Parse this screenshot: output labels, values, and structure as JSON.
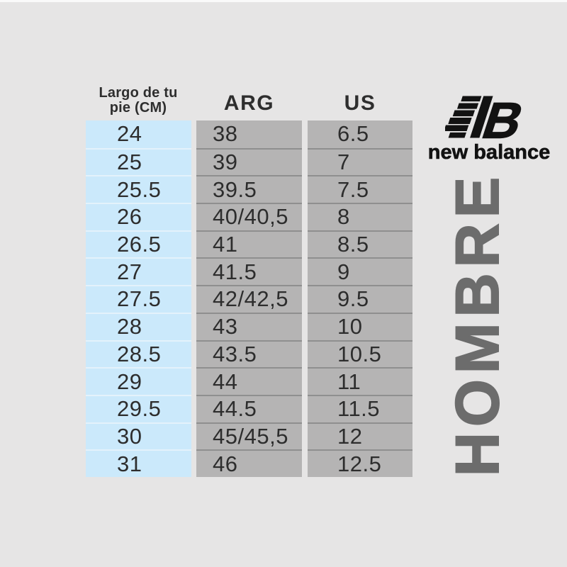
{
  "meta": {
    "background_color": "#e6e5e5"
  },
  "brand": {
    "logo_icon": "new-balance-nb-mark",
    "mark_color": "#121212",
    "wordmark": "new balance",
    "vertical_label": "HOMBRE",
    "vertical_label_color": "#6c6c6c"
  },
  "size_chart": {
    "header": {
      "cm_line1": "Largo de tu",
      "cm_line2": "pie (CM)",
      "arg": "ARG",
      "us": "US"
    },
    "colors": {
      "cm_cell": "#cbe9fb",
      "size_cell": "#b5b4b4",
      "text": "#2d2d2d"
    },
    "rows": [
      {
        "cm": "24",
        "arg": "38",
        "us": "6.5"
      },
      {
        "cm": "25",
        "arg": "39",
        "us": "7"
      },
      {
        "cm": "25.5",
        "arg": "39.5",
        "us": "7.5"
      },
      {
        "cm": "26",
        "arg": "40/40,5",
        "us": "8"
      },
      {
        "cm": "26.5",
        "arg": "41",
        "us": "8.5"
      },
      {
        "cm": "27",
        "arg": "41.5",
        "us": "9"
      },
      {
        "cm": "27.5",
        "arg": "42/42,5",
        "us": "9.5"
      },
      {
        "cm": "28",
        "arg": "43",
        "us": "10"
      },
      {
        "cm": "28.5",
        "arg": "43.5",
        "us": "10.5"
      },
      {
        "cm": "29",
        "arg": "44",
        "us": "11"
      },
      {
        "cm": "29.5",
        "arg": "44.5",
        "us": "11.5"
      },
      {
        "cm": "30",
        "arg": "45/45,5",
        "us": "12"
      },
      {
        "cm": "31",
        "arg": "46",
        "us": "12.5"
      }
    ]
  },
  "chart_data": {
    "type": "table",
    "columns": [
      "Largo de tu pie (CM)",
      "ARG",
      "US"
    ],
    "rows": [
      [
        "24",
        "38",
        "6.5"
      ],
      [
        "25",
        "39",
        "7"
      ],
      [
        "25.5",
        "39.5",
        "7.5"
      ],
      [
        "26",
        "40/40,5",
        "8"
      ],
      [
        "26.5",
        "41",
        "8.5"
      ],
      [
        "27",
        "41.5",
        "9"
      ],
      [
        "27.5",
        "42/42,5",
        "9.5"
      ],
      [
        "28",
        "43",
        "10"
      ],
      [
        "28.5",
        "43.5",
        "10.5"
      ],
      [
        "29",
        "44",
        "11"
      ],
      [
        "29.5",
        "44.5",
        "11.5"
      ],
      [
        "30",
        "45/45,5",
        "12"
      ],
      [
        "31",
        "46",
        "12.5"
      ]
    ]
  }
}
